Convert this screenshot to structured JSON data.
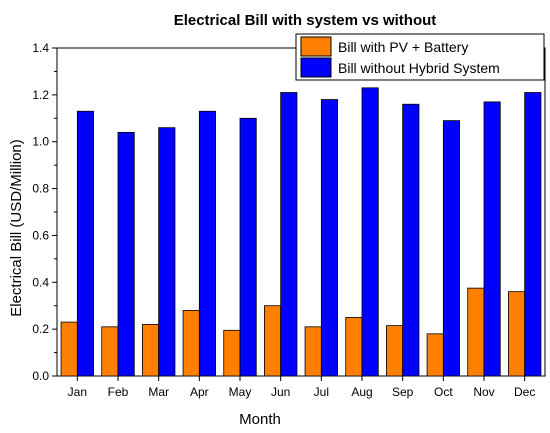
{
  "chart_data": {
    "type": "bar",
    "title": "Electrical Bill with system vs without",
    "xlabel": "Month",
    "ylabel": "Electrical Bill (USD/Million)",
    "categories": [
      "Jan",
      "Feb",
      "Mar",
      "Apr",
      "May",
      "Jun",
      "Jul",
      "Aug",
      "Sep",
      "Oct",
      "Nov",
      "Dec"
    ],
    "ylim": [
      0,
      1.4
    ],
    "yticks": [
      "0.0",
      "0.2",
      "0.4",
      "0.6",
      "0.8",
      "1.0",
      "1.2",
      "1.4"
    ],
    "series": [
      {
        "name": "Bill with PV + Battery",
        "color": "#FF8000",
        "values": [
          0.23,
          0.21,
          0.22,
          0.28,
          0.195,
          0.3,
          0.21,
          0.25,
          0.215,
          0.18,
          0.375,
          0.36
        ]
      },
      {
        "name": "Bill without Hybrid System",
        "color": "#0000FF",
        "values": [
          1.13,
          1.04,
          1.06,
          1.13,
          1.1,
          1.21,
          1.18,
          1.23,
          1.16,
          1.09,
          1.17,
          1.21
        ]
      }
    ],
    "legend": "top-right",
    "grid": false
  }
}
